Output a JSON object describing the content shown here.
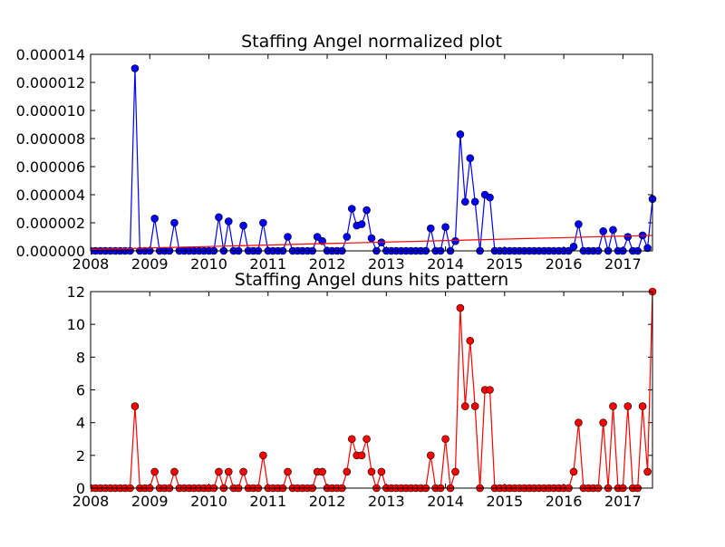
{
  "chart_data": [
    {
      "type": "line",
      "title": "Staffing Angel normalized plot",
      "xlabel": "",
      "ylabel": "",
      "x_ticks": [
        "2008",
        "2009",
        "2010",
        "2011",
        "2012",
        "2013",
        "2014",
        "2015",
        "2016",
        "2017"
      ],
      "y_ticks": [
        "0.000000",
        "0.000002",
        "0.000004",
        "0.000006",
        "0.000008",
        "0.000010",
        "0.000012",
        "0.000014"
      ],
      "xlim": [
        2008.0,
        2017.5
      ],
      "ylim": [
        0,
        1.4e-05
      ],
      "grid": false,
      "legend": "none",
      "x": [
        2008.0,
        2008.083,
        2008.167,
        2008.25,
        2008.333,
        2008.417,
        2008.5,
        2008.583,
        2008.667,
        2008.75,
        2008.833,
        2008.917,
        2009.0,
        2009.083,
        2009.167,
        2009.25,
        2009.333,
        2009.417,
        2009.5,
        2009.583,
        2009.667,
        2009.75,
        2009.833,
        2009.917,
        2010.0,
        2010.083,
        2010.167,
        2010.25,
        2010.333,
        2010.417,
        2010.5,
        2010.583,
        2010.667,
        2010.75,
        2010.833,
        2010.917,
        2011.0,
        2011.083,
        2011.167,
        2011.25,
        2011.333,
        2011.417,
        2011.5,
        2011.583,
        2011.667,
        2011.75,
        2011.833,
        2011.917,
        2012.0,
        2012.083,
        2012.167,
        2012.25,
        2012.333,
        2012.417,
        2012.5,
        2012.583,
        2012.667,
        2012.75,
        2012.833,
        2012.917,
        2013.0,
        2013.083,
        2013.167,
        2013.25,
        2013.333,
        2013.417,
        2013.5,
        2013.583,
        2013.667,
        2013.75,
        2013.833,
        2013.917,
        2014.0,
        2014.083,
        2014.167,
        2014.25,
        2014.333,
        2014.417,
        2014.5,
        2014.583,
        2014.667,
        2014.75,
        2014.833,
        2014.917,
        2015.0,
        2015.083,
        2015.167,
        2015.25,
        2015.333,
        2015.417,
        2015.5,
        2015.583,
        2015.667,
        2015.75,
        2015.833,
        2015.917,
        2016.0,
        2016.083,
        2016.167,
        2016.25,
        2016.333,
        2016.417,
        2016.5,
        2016.583,
        2016.667,
        2016.75,
        2016.833,
        2016.917,
        2017.0,
        2017.083,
        2017.167,
        2017.25,
        2017.333,
        2017.417,
        2017.5
      ],
      "series": [
        {
          "color": "#0000ff",
          "marker": "circle",
          "values": [
            0,
            0,
            0,
            0,
            0,
            0,
            0,
            0,
            0,
            1.3e-05,
            0,
            0,
            0,
            2.3e-06,
            0,
            0,
            0,
            2e-06,
            0,
            0,
            0,
            0,
            0,
            0,
            0,
            0,
            2.4e-06,
            0,
            2.1e-06,
            0,
            0,
            1.8e-06,
            0,
            0,
            0,
            2e-06,
            0,
            0,
            0,
            0,
            1e-06,
            0,
            0,
            0,
            0,
            0,
            1e-06,
            7e-07,
            0,
            0,
            0,
            0,
            1e-06,
            3e-06,
            1.8e-06,
            1.9e-06,
            2.9e-06,
            9e-07,
            0,
            6e-07,
            0,
            0,
            0,
            0,
            0,
            0,
            0,
            0,
            0,
            1.6e-06,
            0,
            0,
            1.7e-06,
            0,
            7e-07,
            8.3e-06,
            3.5e-06,
            6.6e-06,
            3.5e-06,
            0,
            4e-06,
            3.8e-06,
            0,
            0,
            0,
            0,
            0,
            0,
            0,
            0,
            0,
            0,
            0,
            0,
            0,
            0,
            0,
            0,
            3e-07,
            1.9e-06,
            0,
            0,
            0,
            0,
            1.4e-06,
            0,
            1.5e-06,
            0,
            0,
            1e-06,
            0,
            0,
            1.1e-06,
            2e-07,
            3.7e-06
          ]
        },
        {
          "color": "#ff0000",
          "marker": "none",
          "values_by_x": {
            "x": [
              2008.0,
              2017.5
            ],
            "y": [
              1e-07,
              1.1e-06
            ]
          }
        }
      ]
    },
    {
      "type": "line",
      "title": "Staffing Angel duns hits pattern",
      "xlabel": "",
      "ylabel": "",
      "x_ticks": [
        "2008",
        "2009",
        "2010",
        "2011",
        "2012",
        "2013",
        "2014",
        "2015",
        "2016",
        "2017"
      ],
      "y_ticks": [
        "0",
        "2",
        "4",
        "6",
        "8",
        "10",
        "12"
      ],
      "xlim": [
        2008.0,
        2017.5
      ],
      "ylim": [
        0,
        12
      ],
      "grid": false,
      "legend": "none",
      "x": [
        2008.0,
        2008.083,
        2008.167,
        2008.25,
        2008.333,
        2008.417,
        2008.5,
        2008.583,
        2008.667,
        2008.75,
        2008.833,
        2008.917,
        2009.0,
        2009.083,
        2009.167,
        2009.25,
        2009.333,
        2009.417,
        2009.5,
        2009.583,
        2009.667,
        2009.75,
        2009.833,
        2009.917,
        2010.0,
        2010.083,
        2010.167,
        2010.25,
        2010.333,
        2010.417,
        2010.5,
        2010.583,
        2010.667,
        2010.75,
        2010.833,
        2010.917,
        2011.0,
        2011.083,
        2011.167,
        2011.25,
        2011.333,
        2011.417,
        2011.5,
        2011.583,
        2011.667,
        2011.75,
        2011.833,
        2011.917,
        2012.0,
        2012.083,
        2012.167,
        2012.25,
        2012.333,
        2012.417,
        2012.5,
        2012.583,
        2012.667,
        2012.75,
        2012.833,
        2012.917,
        2013.0,
        2013.083,
        2013.167,
        2013.25,
        2013.333,
        2013.417,
        2013.5,
        2013.583,
        2013.667,
        2013.75,
        2013.833,
        2013.917,
        2014.0,
        2014.083,
        2014.167,
        2014.25,
        2014.333,
        2014.417,
        2014.5,
        2014.583,
        2014.667,
        2014.75,
        2014.833,
        2014.917,
        2015.0,
        2015.083,
        2015.167,
        2015.25,
        2015.333,
        2015.417,
        2015.5,
        2015.583,
        2015.667,
        2015.75,
        2015.833,
        2015.917,
        2016.0,
        2016.083,
        2016.167,
        2016.25,
        2016.333,
        2016.417,
        2016.5,
        2016.583,
        2016.667,
        2016.75,
        2016.833,
        2016.917,
        2017.0,
        2017.083,
        2017.167,
        2017.25,
        2017.333,
        2017.417,
        2017.5
      ],
      "series": [
        {
          "color": "#ff0000",
          "marker": "circle",
          "values": [
            0,
            0,
            0,
            0,
            0,
            0,
            0,
            0,
            0,
            5,
            0,
            0,
            0,
            1,
            0,
            0,
            0,
            1,
            0,
            0,
            0,
            0,
            0,
            0,
            0,
            0,
            1,
            0,
            1,
            0,
            0,
            1,
            0,
            0,
            0,
            2,
            0,
            0,
            0,
            0,
            1,
            0,
            0,
            0,
            0,
            0,
            1,
            1,
            0,
            0,
            0,
            0,
            1,
            3,
            2,
            2,
            3,
            1,
            0,
            1,
            0,
            0,
            0,
            0,
            0,
            0,
            0,
            0,
            0,
            2,
            0,
            0,
            3,
            0,
            1,
            11,
            5,
            9,
            5,
            0,
            6,
            6,
            0,
            0,
            0,
            0,
            0,
            0,
            0,
            0,
            0,
            0,
            0,
            0,
            0,
            0,
            0,
            0,
            1,
            4,
            0,
            0,
            0,
            0,
            4,
            0,
            5,
            0,
            0,
            5,
            0,
            0,
            5,
            1,
            12
          ]
        }
      ]
    }
  ]
}
